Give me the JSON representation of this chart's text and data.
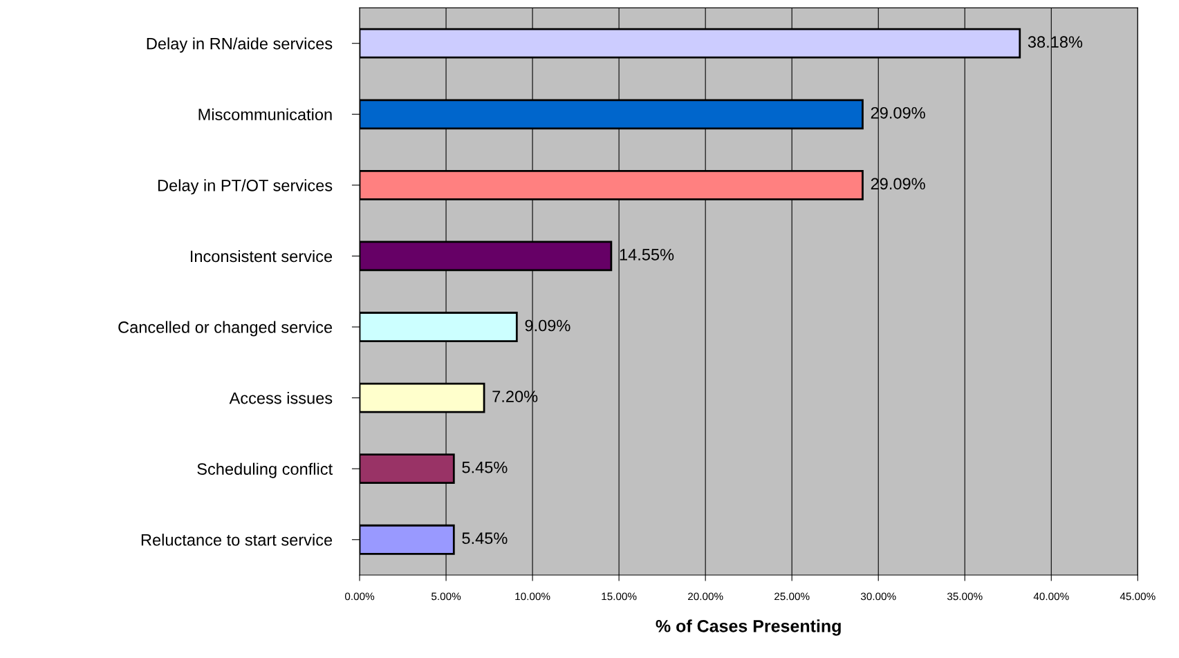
{
  "chart_data": {
    "type": "bar",
    "orientation": "horizontal",
    "xlabel": "% of Cases Presenting",
    "categories": [
      "Delay in RN/aide services",
      "Miscommunication",
      "Delay in PT/OT services",
      "Inconsistent service",
      "Cancelled or changed service",
      "Access issues",
      "Scheduling conflict",
      "Reluctance to start service"
    ],
    "values": [
      38.18,
      29.09,
      29.09,
      14.55,
      9.09,
      7.2,
      5.45,
      5.45
    ],
    "value_labels": [
      "38.18%",
      "29.09%",
      "29.09%",
      "14.55%",
      "9.09%",
      "7.20%",
      "5.45%",
      "5.45%"
    ],
    "colors": [
      "#ccccff",
      "#0066cc",
      "#ff8080",
      "#660066",
      "#ccffff",
      "#ffffcc",
      "#993366",
      "#9999ff"
    ],
    "xlim": [
      0,
      45
    ],
    "xticks": [
      {
        "value": 0,
        "label": "0.00%"
      },
      {
        "value": 5,
        "label": "5.00%"
      },
      {
        "value": 10,
        "label": "10.00%"
      },
      {
        "value": 15,
        "label": "15.00%"
      },
      {
        "value": 20,
        "label": "20.00%"
      },
      {
        "value": 25,
        "label": "25.00%"
      },
      {
        "value": 30,
        "label": "30.00%"
      },
      {
        "value": 35,
        "label": "35.00%"
      },
      {
        "value": 40,
        "label": "40.00%"
      },
      {
        "value": 45,
        "label": "45.00%"
      }
    ],
    "grid": "x",
    "legend": false
  }
}
